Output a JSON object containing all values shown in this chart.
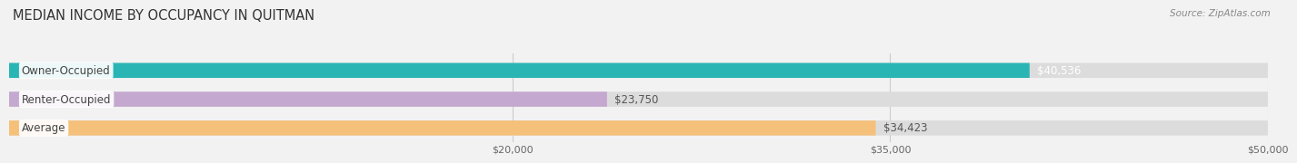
{
  "title": "MEDIAN INCOME BY OCCUPANCY IN QUITMAN",
  "source": "Source: ZipAtlas.com",
  "categories": [
    "Owner-Occupied",
    "Renter-Occupied",
    "Average"
  ],
  "values": [
    40536,
    23750,
    34423
  ],
  "bar_colors": [
    "#2ab5b5",
    "#c4a8d0",
    "#f5c07a"
  ],
  "bar_bg_color": "#dcdcdc",
  "value_labels": [
    "$40,536",
    "$23,750",
    "$34,423"
  ],
  "value_label_colors": [
    "#ffffff",
    "#555555",
    "#555555"
  ],
  "xlim": [
    0,
    50000
  ],
  "xticks": [
    20000,
    35000,
    50000
  ],
  "xtick_labels": [
    "$20,000",
    "$35,000",
    "$50,000"
  ],
  "background_color": "#f2f2f2",
  "bar_height": 0.52,
  "title_fontsize": 10.5,
  "label_fontsize": 8.5,
  "tick_fontsize": 8
}
